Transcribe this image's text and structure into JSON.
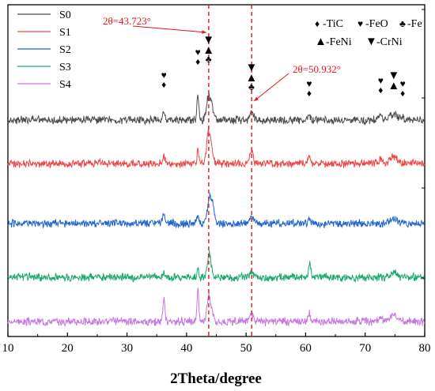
{
  "chart_data": {
    "type": "line",
    "title": "",
    "xlabel": "2Theta/degree",
    "ylabel": "",
    "xlim": [
      10,
      80
    ],
    "xticks": [
      "10",
      "20",
      "30",
      "40",
      "50",
      "60",
      "70",
      "80"
    ],
    "grid": false,
    "legend_position": "top-left",
    "series": [
      {
        "name": "S0",
        "color": "#4d4d4d",
        "baseline": 0.26,
        "peaks": [
          {
            "x": 36.2,
            "h": 0.12,
            "w": 0.18
          },
          {
            "x": 41.9,
            "h": 0.36,
            "w": 0.15
          },
          {
            "x": 43.7,
            "h": 0.3,
            "w": 0.3
          },
          {
            "x": 44.3,
            "h": 0.14,
            "w": 0.3
          },
          {
            "x": 50.9,
            "h": 0.1,
            "w": 0.3
          },
          {
            "x": 60.6,
            "h": 0.08,
            "w": 0.2
          },
          {
            "x": 72.6,
            "h": 0.1,
            "w": 0.25
          },
          {
            "x": 74.8,
            "h": 0.08,
            "w": 0.6
          },
          {
            "x": 76.2,
            "h": 0.05,
            "w": 0.25
          }
        ]
      },
      {
        "name": "S1",
        "color": "#f04545",
        "baseline": 0.24,
        "peaks": [
          {
            "x": 36.2,
            "h": 0.1,
            "w": 0.18
          },
          {
            "x": 41.9,
            "h": 0.18,
            "w": 0.15
          },
          {
            "x": 43.7,
            "h": 0.4,
            "w": 0.32
          },
          {
            "x": 44.3,
            "h": 0.12,
            "w": 0.3
          },
          {
            "x": 50.9,
            "h": 0.15,
            "w": 0.3
          },
          {
            "x": 60.6,
            "h": 0.1,
            "w": 0.2
          },
          {
            "x": 72.6,
            "h": 0.06,
            "w": 0.25
          },
          {
            "x": 74.8,
            "h": 0.08,
            "w": 0.6
          }
        ]
      },
      {
        "name": "S2",
        "color": "#1e64d0",
        "baseline": 0.2,
        "peaks": [
          {
            "x": 36.2,
            "h": 0.14,
            "w": 0.2
          },
          {
            "x": 41.9,
            "h": 0.1,
            "w": 0.18
          },
          {
            "x": 43.9,
            "h": 0.28,
            "w": 0.4
          },
          {
            "x": 44.4,
            "h": 0.14,
            "w": 0.35
          },
          {
            "x": 50.9,
            "h": 0.08,
            "w": 0.35
          },
          {
            "x": 60.6,
            "h": 0.05,
            "w": 0.25
          },
          {
            "x": 74.8,
            "h": 0.06,
            "w": 0.6
          }
        ]
      },
      {
        "name": "S3",
        "color": "#19a86c",
        "baseline": 0.18,
        "peaks": [
          {
            "x": 36.2,
            "h": 0.06,
            "w": 0.2
          },
          {
            "x": 41.9,
            "h": 0.12,
            "w": 0.15
          },
          {
            "x": 43.8,
            "h": 0.3,
            "w": 0.32
          },
          {
            "x": 50.9,
            "h": 0.06,
            "w": 0.3
          },
          {
            "x": 60.7,
            "h": 0.18,
            "w": 0.18
          },
          {
            "x": 74.8,
            "h": 0.05,
            "w": 0.6
          }
        ]
      },
      {
        "name": "S4",
        "color": "#c777e0",
        "baseline": 0.22,
        "peaks": [
          {
            "x": 36.2,
            "h": 0.3,
            "w": 0.16
          },
          {
            "x": 41.9,
            "h": 0.42,
            "w": 0.14
          },
          {
            "x": 43.7,
            "h": 0.32,
            "w": 0.3
          },
          {
            "x": 44.3,
            "h": 0.12,
            "w": 0.28
          },
          {
            "x": 50.9,
            "h": 0.1,
            "w": 0.3
          },
          {
            "x": 60.6,
            "h": 0.12,
            "w": 0.18
          },
          {
            "x": 72.6,
            "h": 0.06,
            "w": 0.25
          },
          {
            "x": 74.8,
            "h": 0.08,
            "w": 0.6
          }
        ]
      }
    ],
    "reference_lines": [
      {
        "x": 43.723,
        "label": "2θ=43.723°",
        "color": "#e8131b"
      },
      {
        "x": 50.932,
        "label": "2θ=50.932°",
        "color": "#e8131b"
      }
    ],
    "phase_legend": [
      {
        "symbol": "♦",
        "text": "-TiC"
      },
      {
        "symbol": "♥",
        "text": "-FeO"
      },
      {
        "symbol": "♣",
        "text": "-Fe"
      },
      {
        "symbol": "▲",
        "text": "-FeNi"
      },
      {
        "symbol": "▼",
        "text": "-CrNi"
      }
    ],
    "peak_markers": [
      {
        "x": 36.2,
        "symbols": [
          "♥",
          "♦"
        ]
      },
      {
        "x": 41.9,
        "symbols": [
          "♥",
          "♦"
        ]
      },
      {
        "x": 43.7,
        "symbols": [
          "▼",
          "▲",
          "♣"
        ]
      },
      {
        "x": 50.9,
        "symbols": [
          "▼",
          "▲",
          "♣"
        ]
      },
      {
        "x": 60.6,
        "symbols": [
          "♥",
          "♦"
        ]
      },
      {
        "x": 72.6,
        "symbols": [
          "♥",
          "♦"
        ]
      },
      {
        "x": 74.8,
        "symbols": [
          "▼",
          "▲"
        ]
      },
      {
        "x": 76.3,
        "symbols": [
          "♥",
          "♦"
        ]
      }
    ]
  }
}
